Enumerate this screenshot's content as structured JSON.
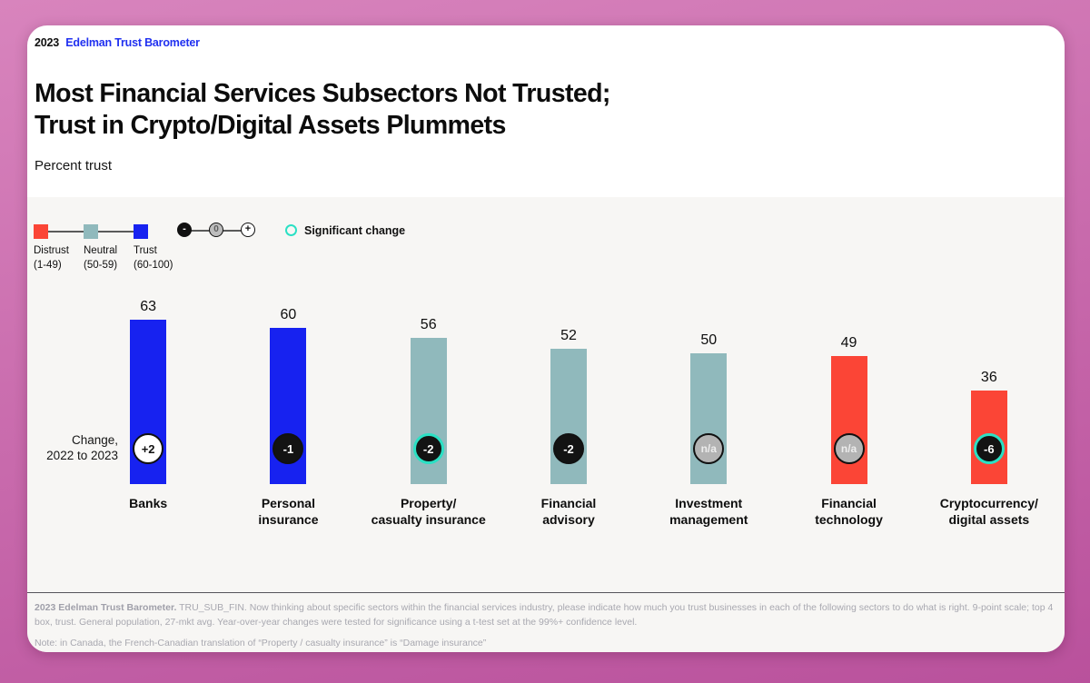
{
  "colors": {
    "page_background": "#c britain",
    "page_bg_top": "#d884bd",
    "page_bg_bottom": "#b9519c",
    "panel_background": "#f7f6f4",
    "brand_blue": "#2030f0",
    "distrust": "#fb4536",
    "neutral": "#90b9bc",
    "trust": "#1722f0",
    "significant": "#2be0c4"
  },
  "header": {
    "year": "2023",
    "brand": "Edelman Trust Barometer"
  },
  "title": {
    "line1": "Most Financial Services Subsectors Not Trusted;",
    "line2": "Trust in Crypto/Digital Assets Plummets"
  },
  "subtitle": "Percent trust",
  "legend": {
    "scale": [
      {
        "label": "Distrust",
        "range": "(1-49)",
        "segment": "distrust"
      },
      {
        "label": "Neutral",
        "range": "(50-59)",
        "segment": "neutral"
      },
      {
        "label": "Trust",
        "range": "(60-100)",
        "segment": "trust"
      }
    ],
    "minus_symbol": "-",
    "zero_symbol": "0",
    "plus_symbol": "+",
    "significant_label": "Significant change"
  },
  "change_axis_label": "Change,\n2022 to 2023",
  "chart_data": {
    "type": "bar",
    "title": "Most Financial Services Subsectors Not Trusted; Trust in Crypto/Digital Assets Plummets",
    "ylabel": "Percent trust",
    "ylim": [
      0,
      100
    ],
    "grid": false,
    "categories": [
      "Banks",
      "Personal insurance",
      "Property/casualty insurance",
      "Financial advisory",
      "Investment management",
      "Financial technology",
      "Cryptocurrency/digital assets"
    ],
    "values": [
      63,
      60,
      56,
      52,
      50,
      49,
      36
    ],
    "changes_2022_to_2023": [
      "+2",
      "-1",
      "-2",
      "-2",
      "n/a",
      "n/a",
      "-6"
    ],
    "bars": [
      {
        "label": "Banks",
        "label_lines": "Banks",
        "value": 63,
        "segment": "trust",
        "change": "+2",
        "badge": "positive",
        "significant": false
      },
      {
        "label": "Personal insurance",
        "label_lines": "Personal\ninsurance",
        "value": 60,
        "segment": "trust",
        "change": "-1",
        "badge": "negative",
        "significant": false
      },
      {
        "label": "Property/casualty insurance",
        "label_lines": "Property/\ncasualty insurance",
        "value": 56,
        "segment": "neutral",
        "change": "-2",
        "badge": "negative",
        "significant": true
      },
      {
        "label": "Financial advisory",
        "label_lines": "Financial\nadvisory",
        "value": 52,
        "segment": "neutral",
        "change": "-2",
        "badge": "negative",
        "significant": false
      },
      {
        "label": "Investment management",
        "label_lines": "Investment\nmanagement",
        "value": 50,
        "segment": "neutral",
        "change": "n/a",
        "badge": "na",
        "significant": false
      },
      {
        "label": "Financial technology",
        "label_lines": "Financial\ntechnology",
        "value": 49,
        "segment": "distrust",
        "change": "n/a",
        "badge": "na",
        "significant": false
      },
      {
        "label": "Cryptocurrency/digital assets",
        "label_lines": "Cryptocurrency/\ndigital assets",
        "value": 36,
        "segment": "distrust",
        "change": "-6",
        "badge": "negative",
        "significant": true
      }
    ]
  },
  "footer": {
    "source_bold": "2023 Edelman Trust Barometer.",
    "source_rest": " TRU_SUB_FIN. Now thinking about specific sectors within the financial services industry, please indicate how much you trust businesses in each of the following sectors to do what is right. 9-point scale; top 4 box, trust. General population, 27-mkt avg. Year-over-year changes were tested for significance using a t-test set at the 99%+ confidence level.",
    "note": "Note: in Canada, the French-Canadian translation of “Property / casualty insurance” is “Damage insurance”"
  }
}
